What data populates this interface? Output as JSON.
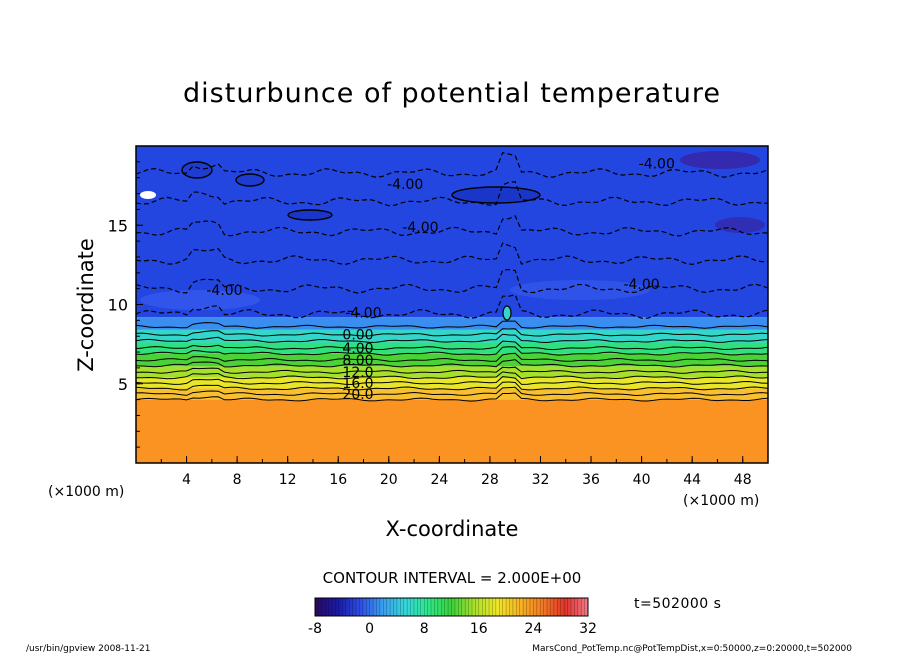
{
  "chart_data": {
    "type": "heatmap",
    "title": "disturbunce of potential temperature",
    "xlabel": "X-coordinate",
    "ylabel": "Z-coordinate",
    "x_unit": "(×1000 m)",
    "y_unit": "(×1000 m)",
    "xlim": [
      0,
      50
    ],
    "ylim": [
      0,
      20
    ],
    "x_ticks": [
      4,
      8,
      12,
      16,
      20,
      24,
      28,
      32,
      36,
      40,
      44,
      48
    ],
    "y_ticks": [
      5,
      10,
      15
    ],
    "contour_interval_text": "CONTOUR INTERVAL = 2.000E+00",
    "time_text": "t=502000 s",
    "colorbar": {
      "min": -8,
      "max": 32,
      "ticks": [
        -8,
        0,
        8,
        16,
        24,
        32
      ],
      "colors": [
        "#2a0a5e",
        "#1a1aa8",
        "#2d4fe6",
        "#3aa0f0",
        "#33d8d8",
        "#2ee68a",
        "#3ad23a",
        "#a8e02c",
        "#f0e628",
        "#f5b423",
        "#f27a23",
        "#e0342a",
        "#f07a8a"
      ]
    },
    "bands": [
      {
        "z_from": 0,
        "z_to": 4,
        "theta": 25,
        "color": "#fb9322"
      },
      {
        "z_from": 4,
        "z_to": 4.7,
        "theta": 22,
        "color": "#f8c030"
      },
      {
        "z_from": 4.7,
        "z_to": 5.4,
        "theta": 19,
        "color": "#e8e62a"
      },
      {
        "z_from": 5.4,
        "z_to": 6.1,
        "theta": 16,
        "color": "#a6e02c"
      },
      {
        "z_from": 6.1,
        "z_to": 6.9,
        "theta": 12,
        "color": "#4ad236"
      },
      {
        "z_from": 6.9,
        "z_to": 7.6,
        "theta": 8,
        "color": "#30e07c"
      },
      {
        "z_from": 7.6,
        "z_to": 8.4,
        "theta": 4,
        "color": "#33d6c8"
      },
      {
        "z_from": 8.4,
        "z_to": 9.2,
        "theta": 0,
        "color": "#3a8ef0"
      },
      {
        "z_from": 9.2,
        "z_to": 20,
        "theta": -3,
        "color": "#2446e0"
      }
    ],
    "contour_lines": [
      {
        "z": 4.0,
        "label": ""
      },
      {
        "z": 4.35,
        "label": "20.0"
      },
      {
        "z": 4.7,
        "label": ""
      },
      {
        "z": 5.05,
        "label": "16.0"
      },
      {
        "z": 5.4,
        "label": ""
      },
      {
        "z": 5.75,
        "label": "12.0"
      },
      {
        "z": 6.15,
        "label": ""
      },
      {
        "z": 6.5,
        "label": "8.00"
      },
      {
        "z": 6.9,
        "label": ""
      },
      {
        "z": 7.25,
        "label": "4.00"
      },
      {
        "z": 7.7,
        "label": ""
      },
      {
        "z": 8.1,
        "label": "0.00"
      },
      {
        "z": 8.6,
        "label": ""
      }
    ],
    "inline_labels": [
      {
        "x": 41.2,
        "z": 18.9,
        "text": "-4.00"
      },
      {
        "x": 21.3,
        "z": 17.6,
        "text": "-4.00"
      },
      {
        "x": 22.5,
        "z": 14.9,
        "text": "-4.00"
      },
      {
        "x": 7.0,
        "z": 10.9,
        "text": "-4.00"
      },
      {
        "x": 18.0,
        "z": 9.5,
        "text": "-4.00"
      },
      {
        "x": 40.0,
        "z": 11.3,
        "text": "-4.00"
      }
    ]
  },
  "footer": {
    "left": "/usr/bin/gpview   2008-11-21",
    "right": "MarsCond_PotTemp.nc@PotTempDist,x=0:50000,z=0:20000,t=502000"
  }
}
